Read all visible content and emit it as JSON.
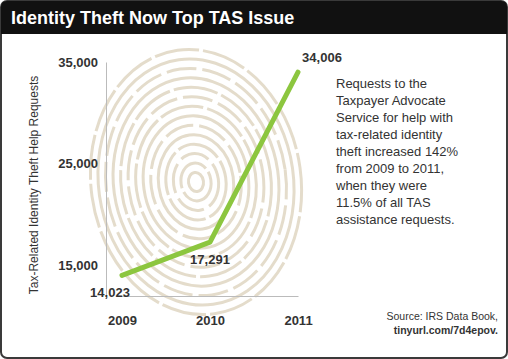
{
  "chart_data": {
    "type": "line",
    "title": "Identity Theft Now Top TAS Issue",
    "y_label": "Tax-Related Identity Theft Help Requests",
    "categories": [
      "2009",
      "2010",
      "2011"
    ],
    "values": [
      14023,
      17291,
      34006
    ],
    "value_labels": [
      "14,023",
      "17,291",
      "34,006"
    ],
    "color": "#8cc63f",
    "ylim": [
      12000,
      35000
    ],
    "yticks": [
      {
        "value": 15000,
        "label": "15,000"
      },
      {
        "value": 25000,
        "label": "25,000"
      },
      {
        "value": 35000,
        "label": "35,000"
      }
    ],
    "grid": false,
    "data_labels": true,
    "annotations": [
      [
        "Requests to the",
        "Taxpayer Advocate",
        "Service for help with",
        "tax-related identity",
        "theft increased 142%",
        "from 2009 to 2011,",
        "when they were",
        "11.5% of all TAS",
        "assistance requests."
      ],
      [
        "Source: IRS Data Book,",
        "tinyurl.com/7d4epov."
      ]
    ]
  }
}
